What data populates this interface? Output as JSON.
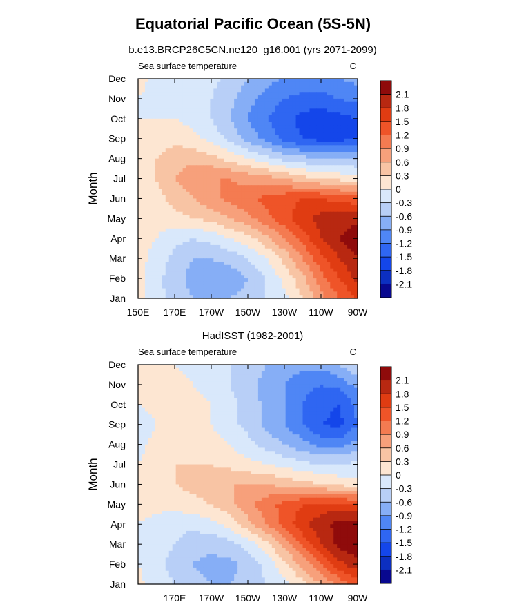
{
  "page_title": "Equatorial Pacific Ocean (5S-5N)",
  "colors": {
    "levels": [
      "#08088f",
      "#0c2fc0",
      "#1446ea",
      "#2f66f2",
      "#4f86f5",
      "#86aef6",
      "#b8cff7",
      "#d9e8fb",
      "#fde6d2",
      "#f8c4a4",
      "#f7a07b",
      "#f47b51",
      "#ef5428",
      "#e03c12",
      "#b82811",
      "#8f0b0b"
    ]
  },
  "chart_data": [
    {
      "type": "heatmap",
      "title": "b.e13.BRCP26C5CN.ne120_g16.001 (yrs 2071-2099)",
      "left_string": "Sea surface temperature",
      "right_string": "C",
      "xlabel": "",
      "ylabel": "Month",
      "x_ticks": [
        "150E",
        "170E",
        "170W",
        "150W",
        "130W",
        "110W",
        "90W"
      ],
      "x_tick_values": [
        150,
        170,
        190,
        210,
        230,
        250,
        270
      ],
      "xlim": [
        150,
        270
      ],
      "y_ticks": [
        "Jan",
        "Feb",
        "Mar",
        "Apr",
        "May",
        "Jun",
        "Jul",
        "Aug",
        "Sep",
        "Oct",
        "Nov",
        "Dec"
      ],
      "colorbar_labels": [
        "2.1",
        "1.8",
        "1.5",
        "1.2",
        "0.9",
        "0.6",
        "0.3",
        "0",
        "-0.3",
        "-0.6",
        "-0.9",
        "-1.2",
        "-1.5",
        "-1.8",
        "-2.1"
      ],
      "levels": [
        -2.1,
        -1.8,
        -1.5,
        -1.2,
        -0.9,
        -0.6,
        -0.3,
        0,
        0.3,
        0.6,
        0.9,
        1.2,
        1.5,
        1.8,
        2.1
      ],
      "x": [
        150,
        160,
        170,
        180,
        190,
        200,
        210,
        220,
        230,
        240,
        250,
        260,
        270
      ],
      "z": [
        [
          0.1,
          -0.2,
          -0.4,
          -0.6,
          -0.7,
          -0.6,
          -0.5,
          -0.3,
          -0.1,
          0.3,
          0.8,
          1.2,
          1.5
        ],
        [
          0.1,
          -0.2,
          -0.5,
          -0.7,
          -0.8,
          -0.8,
          -0.6,
          -0.3,
          0.1,
          0.5,
          1.1,
          1.5,
          1.9
        ],
        [
          0.1,
          -0.1,
          -0.4,
          -0.6,
          -0.6,
          -0.5,
          -0.3,
          0.0,
          0.4,
          0.9,
          1.4,
          1.8,
          2.1
        ],
        [
          0.1,
          0.0,
          -0.2,
          -0.3,
          -0.2,
          0.0,
          0.2,
          0.5,
          0.9,
          1.3,
          1.8,
          2.1,
          2.3
        ],
        [
          0.1,
          0.1,
          0.2,
          0.3,
          0.4,
          0.6,
          0.8,
          1.1,
          1.4,
          1.7,
          1.9,
          2.0,
          2.0
        ],
        [
          0.1,
          0.2,
          0.4,
          0.6,
          0.8,
          1.0,
          1.1,
          1.3,
          1.4,
          1.5,
          1.5,
          1.4,
          1.3
        ],
        [
          0.1,
          0.3,
          0.6,
          0.8,
          0.9,
          0.9,
          0.8,
          0.7,
          0.6,
          0.4,
          0.3,
          0.2,
          0.1
        ],
        [
          0.1,
          0.3,
          0.5,
          0.5,
          0.4,
          0.2,
          0.0,
          -0.2,
          -0.4,
          -0.5,
          -0.6,
          -0.6,
          -0.6
        ],
        [
          0.0,
          0.1,
          0.2,
          0.1,
          -0.1,
          -0.4,
          -0.7,
          -1.0,
          -1.3,
          -1.5,
          -1.6,
          -1.6,
          -1.5
        ],
        [
          0.0,
          0.0,
          0.0,
          -0.1,
          -0.3,
          -0.6,
          -0.9,
          -1.2,
          -1.4,
          -1.6,
          -1.7,
          -1.6,
          -1.5
        ],
        [
          0.0,
          -0.1,
          -0.1,
          -0.1,
          -0.3,
          -0.5,
          -0.8,
          -1.0,
          -1.2,
          -1.3,
          -1.3,
          -1.2,
          -1.1
        ],
        [
          0.1,
          -0.1,
          -0.2,
          -0.2,
          -0.2,
          -0.4,
          -0.6,
          -0.8,
          -0.9,
          -1.0,
          -1.0,
          -0.9,
          -0.8
        ]
      ]
    },
    {
      "type": "heatmap",
      "title": "HadISST (1982-2001)",
      "left_string": "Sea surface temperature",
      "right_string": "C",
      "xlabel": "",
      "ylabel": "Month",
      "x_ticks": [
        "170E",
        "170W",
        "150W",
        "130W",
        "110W",
        "90W"
      ],
      "x_tick_values": [
        170,
        190,
        210,
        230,
        250,
        270
      ],
      "xlim": [
        150,
        270
      ],
      "y_ticks": [
        "Jan",
        "Feb",
        "Mar",
        "Apr",
        "May",
        "Jun",
        "Jul",
        "Aug",
        "Sep",
        "Oct",
        "Nov",
        "Dec"
      ],
      "colorbar_labels": [
        "2.1",
        "1.8",
        "1.5",
        "1.2",
        "0.9",
        "0.6",
        "0.3",
        "0",
        "-0.3",
        "-0.6",
        "-0.9",
        "-1.2",
        "-1.5",
        "-1.8",
        "-2.1"
      ],
      "levels": [
        -2.1,
        -1.8,
        -1.5,
        -1.2,
        -0.9,
        -0.6,
        -0.3,
        0,
        0.3,
        0.6,
        0.9,
        1.2,
        1.5,
        1.8,
        2.1
      ],
      "x": [
        150,
        160,
        170,
        180,
        190,
        200,
        210,
        220,
        230,
        240,
        250,
        260,
        270
      ],
      "z": [
        [
          0.1,
          -0.2,
          -0.3,
          -0.5,
          -0.6,
          -0.6,
          -0.5,
          -0.3,
          -0.1,
          0.2,
          0.6,
          1.0,
          1.3
        ],
        [
          0.0,
          -0.2,
          -0.4,
          -0.6,
          -0.7,
          -0.7,
          -0.5,
          -0.2,
          0.2,
          0.7,
          1.2,
          1.7,
          2.0
        ],
        [
          0.0,
          -0.2,
          -0.3,
          -0.5,
          -0.5,
          -0.4,
          -0.2,
          0.2,
          0.7,
          1.3,
          1.8,
          2.2,
          2.4
        ],
        [
          0.0,
          -0.1,
          -0.2,
          -0.2,
          -0.1,
          0.1,
          0.5,
          0.9,
          1.3,
          1.7,
          2.0,
          2.2,
          2.3
        ],
        [
          0.1,
          0.1,
          0.1,
          0.2,
          0.3,
          0.5,
          0.8,
          1.1,
          1.3,
          1.5,
          1.6,
          1.6,
          1.5
        ],
        [
          0.1,
          0.2,
          0.3,
          0.4,
          0.5,
          0.6,
          0.6,
          0.6,
          0.5,
          0.4,
          0.3,
          0.2,
          0.1
        ],
        [
          0.0,
          0.2,
          0.3,
          0.3,
          0.3,
          0.2,
          0.1,
          0.0,
          -0.1,
          -0.2,
          -0.3,
          -0.3,
          -0.2
        ],
        [
          -0.1,
          0.1,
          0.2,
          0.2,
          0.1,
          0.0,
          -0.2,
          -0.4,
          -0.6,
          -0.8,
          -1.0,
          -1.0,
          -0.8
        ],
        [
          -0.2,
          0.0,
          0.3,
          0.2,
          0.0,
          -0.2,
          -0.4,
          -0.7,
          -0.9,
          -1.2,
          -1.5,
          -1.6,
          -1.2
        ],
        [
          0.0,
          0.1,
          0.1,
          0.1,
          0.0,
          -0.2,
          -0.4,
          -0.7,
          -0.9,
          -1.2,
          -1.4,
          -1.5,
          -1.1
        ],
        [
          0.1,
          0.1,
          0.1,
          0.0,
          -0.1,
          -0.3,
          -0.5,
          -0.7,
          -0.9,
          -1.1,
          -1.2,
          -1.1,
          -0.8
        ],
        [
          0.1,
          0.1,
          0.0,
          -0.1,
          -0.2,
          -0.3,
          -0.4,
          -0.6,
          -0.7,
          -0.8,
          -0.8,
          -0.6,
          -0.3
        ]
      ]
    }
  ]
}
